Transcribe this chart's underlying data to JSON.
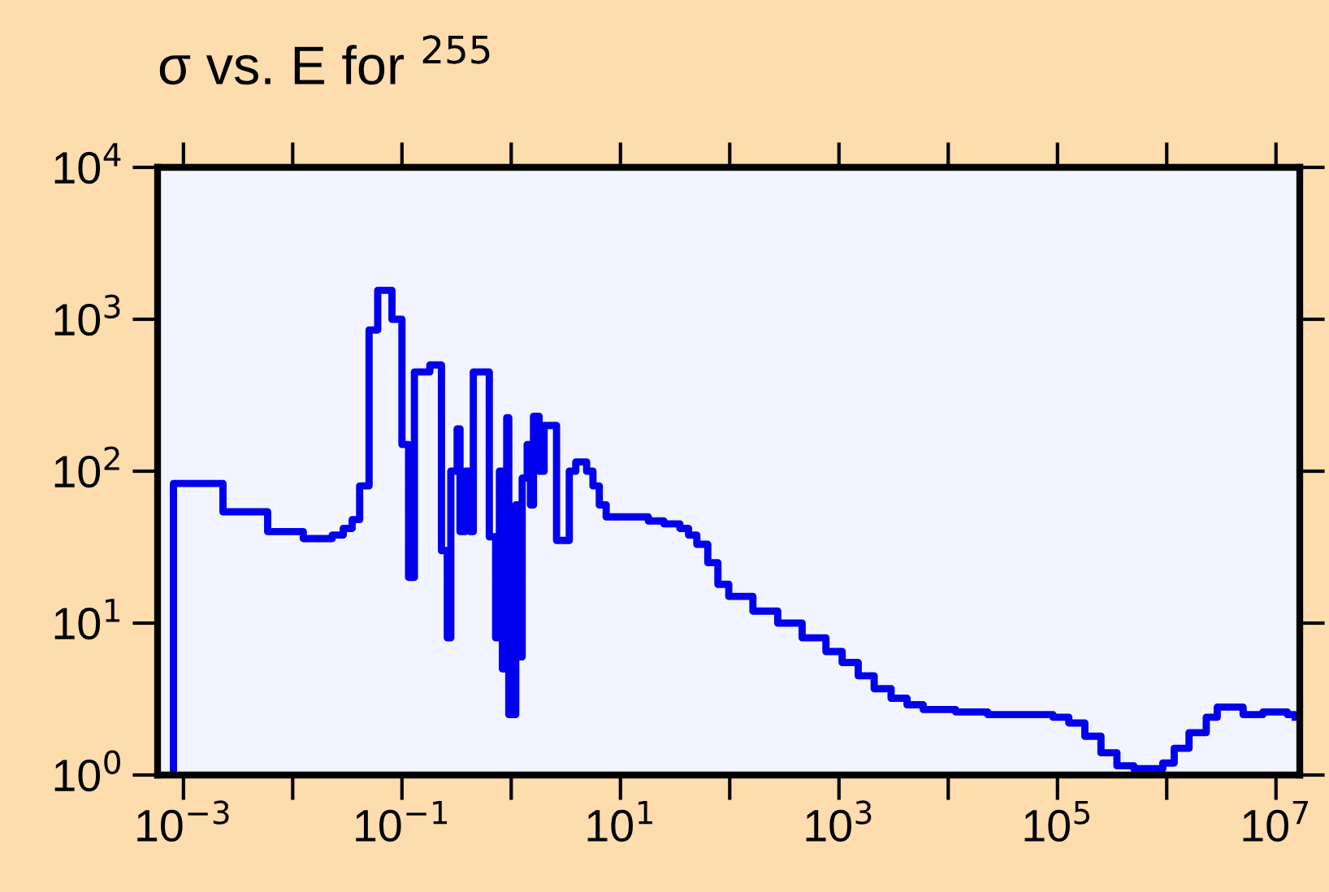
{
  "chart_data": {
    "type": "step",
    "title": "σ vs. E for $^{255}$",
    "log": "xy",
    "grid": false,
    "xlim": [
      0.00058,
      16500000
    ],
    "ylim": [
      1,
      10000
    ],
    "xticks": [
      {
        "value": 0.001,
        "label": "10$^{−3}$"
      },
      {
        "value": 0.01,
        "label": null
      },
      {
        "value": 0.1,
        "label": "10$^{−1}$"
      },
      {
        "value": 1,
        "label": null
      },
      {
        "value": 10,
        "label": "10$^{1}$"
      },
      {
        "value": 100,
        "label": null
      },
      {
        "value": 1000,
        "label": "10$^{3}$"
      },
      {
        "value": 10000,
        "label": null
      },
      {
        "value": 100000,
        "label": "10$^{5}$"
      },
      {
        "value": 1000000,
        "label": null
      },
      {
        "value": 10000000,
        "label": "10$^{7}$"
      }
    ],
    "yticks": [
      {
        "value": 1,
        "label": "10$^{0}$"
      },
      {
        "value": 10,
        "label": "10$^{1}$"
      },
      {
        "value": 100,
        "label": "10$^{2}$"
      },
      {
        "value": 1000,
        "label": "10$^{3}$"
      },
      {
        "value": 10000,
        "label": "10$^{4}$"
      }
    ],
    "series": [
      {
        "color": "#0000ee",
        "x": [
          0.00081,
          0.00081,
          0.0023,
          0.0059,
          0.0125,
          0.023,
          0.029,
          0.035,
          0.041,
          0.05,
          0.06,
          0.081,
          0.1,
          0.115,
          0.13,
          0.18,
          0.23,
          0.26,
          0.28,
          0.32,
          0.34,
          0.38,
          0.42,
          0.45,
          0.63,
          0.72,
          0.78,
          0.83,
          0.91,
          0.95,
          1.1,
          1.17,
          1.26,
          1.4,
          1.5,
          1.6,
          1.8,
          2.0,
          2.6,
          3.4,
          3.9,
          4.9,
          5.6,
          6.4,
          7.4,
          18,
          25,
          35,
          42,
          50,
          63,
          78,
          98,
          163,
          275,
          460,
          760,
          1070,
          1500,
          2100,
          3000,
          4200,
          5900,
          11700,
          23000,
          91000,
          127000,
          178000,
          250000,
          350000,
          500000,
          920000,
          1170000,
          1600000,
          2300000,
          2900000,
          5000000,
          7600000,
          12700000,
          15000000
        ],
        "values": [
          1,
          83,
          54,
          40,
          36,
          38,
          42,
          48,
          80,
          850,
          1550,
          1000,
          150,
          20,
          450,
          500,
          30,
          8,
          100,
          190,
          40,
          100,
          40,
          450,
          37,
          8,
          100,
          5,
          225,
          2.5,
          60,
          6,
          90,
          150,
          60,
          230,
          100,
          200,
          35,
          100,
          115,
          100,
          80,
          60,
          50,
          47,
          45,
          42,
          38,
          33,
          25,
          18,
          15,
          12,
          10,
          8,
          6.5,
          5.5,
          4.5,
          3.7,
          3.2,
          2.9,
          2.7,
          2.6,
          2.5,
          2.4,
          2.2,
          1.8,
          1.4,
          1.15,
          1.1,
          1.2,
          1.5,
          1.9,
          2.4,
          2.8,
          2.5,
          2.6,
          2.5,
          2.4
        ]
      }
    ]
  }
}
